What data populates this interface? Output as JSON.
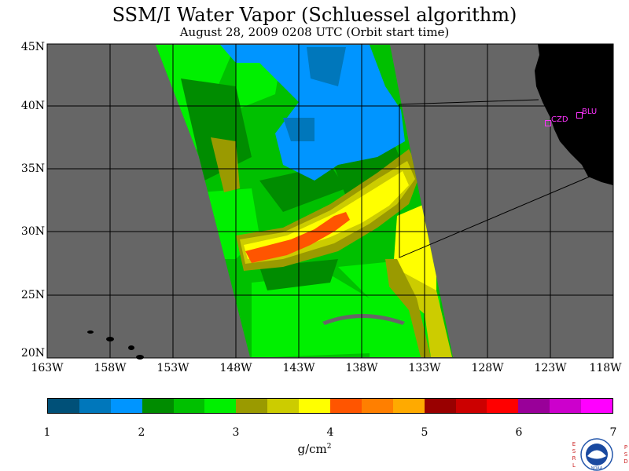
{
  "title": "SSM/I Water Vapor (Schluessel algorithm)",
  "subtitle": "August 28, 2009  0208 UTC  (Orbit start time)",
  "lat_labels": [
    "45N",
    "40N",
    "35N",
    "30N",
    "25N",
    "20N"
  ],
  "lon_labels": [
    "163W",
    "158W",
    "153W",
    "148W",
    "143W",
    "138W",
    "133W",
    "128W",
    "123W",
    "118W"
  ],
  "colorbar": {
    "colors": [
      "#005078",
      "#0077bb",
      "#0095ff",
      "#008c00",
      "#00c000",
      "#00f000",
      "#9a9a00",
      "#cccc00",
      "#ffff00",
      "#ff5500",
      "#ff7f00",
      "#ffaa00",
      "#990000",
      "#cc0000",
      "#ff0000",
      "#990099",
      "#cc00cc",
      "#ff00ff"
    ],
    "labels": [
      "1",
      "2",
      "3",
      "4",
      "5",
      "6",
      "7"
    ]
  },
  "units": "g/cm",
  "units_exp": "2",
  "stations": [
    {
      "name": "CZD"
    },
    {
      "name": "BLU"
    }
  ],
  "logo": {
    "left_letters": "ESRL",
    "right_letters": "PSD",
    "name": "NOAA"
  },
  "colors": {
    "ocean": "#666666",
    "land": "#000000",
    "station": "#ff33ff"
  }
}
